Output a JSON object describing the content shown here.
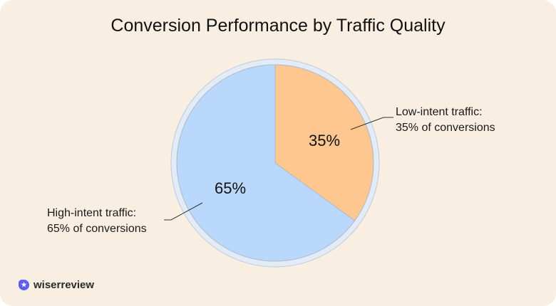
{
  "chart_data": {
    "type": "pie",
    "title": "Conversion Performance by Traffic Quality",
    "slices": [
      {
        "label": "Low-intent traffic:",
        "sublabel": "35% of conversions",
        "value": 35,
        "display": "35%",
        "color": "#fdc78f"
      },
      {
        "label": "High-intent traffic:",
        "sublabel": "65% of conversions",
        "value": 65,
        "display": "65%",
        "color": "#bad8fb"
      }
    ],
    "start_angle": "12 o'clock, clockwise"
  },
  "brand": {
    "name": "wiserreview",
    "icon": "star-badge-icon",
    "color": "#5b5ef0"
  }
}
